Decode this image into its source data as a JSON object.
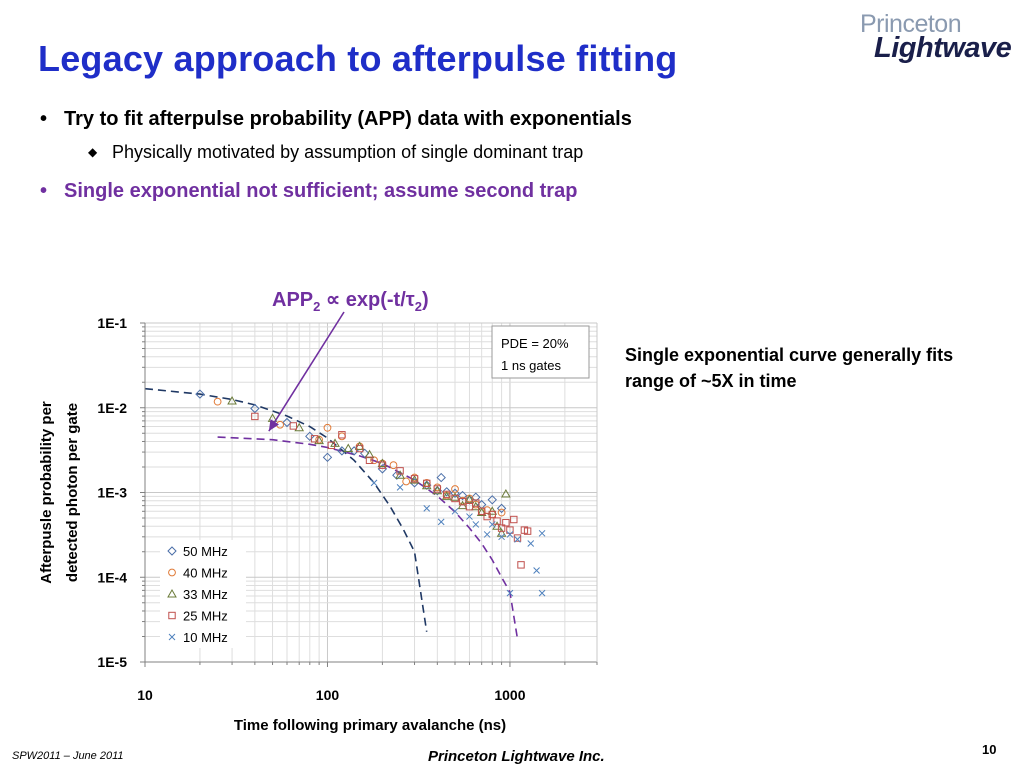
{
  "slide": {
    "title": "Legacy approach to afterpulse fitting",
    "logo_top": "Princeton",
    "logo_bottom": "Lightwave",
    "bullet1": "Try to fit afterpulse probability (APP) data with exponentials",
    "bullet1_sub": "Physically motivated by assumption of single dominant trap",
    "bullet2": "Single exponential not sufficient; assume second trap",
    "side_note": "Single exponential curve generally fits range of ~5X in time",
    "footer_left": "SPW2011 – June 2011",
    "footer_center": "Princeton Lightwave Inc.",
    "page_number": "10",
    "colors": {
      "title": "#1f2ec8",
      "purple": "#7030a0",
      "navy": "#1f3864"
    }
  },
  "chart_data": {
    "type": "scatter",
    "xlabel": "Time following  primary avalanche (ns)",
    "ylabel_line1": "Afterpusle probability per",
    "ylabel_line2": "detected photon  per gate",
    "x_scale": "log",
    "y_scale": "log",
    "xlim": [
      10,
      3000
    ],
    "ylim": [
      1e-05,
      0.1
    ],
    "x_ticks": [
      10,
      100,
      1000
    ],
    "x_tick_labels": [
      "10",
      "100",
      "1000"
    ],
    "y_ticks": [
      0.1,
      0.01,
      0.001,
      0.0001,
      1e-05
    ],
    "y_tick_labels": [
      "1E-1",
      "1E-2",
      "1E-3",
      "1E-4",
      "1E-5"
    ],
    "grid": true,
    "legend_position": "bottom-left",
    "info_box": [
      "PDE = 20%",
      "1 ns gates"
    ],
    "annotation": {
      "main": "APP",
      "sub": "2",
      "rest": "exp(-t/",
      "tau_sub": "2",
      "close": ")",
      "symbol": "∝",
      "tau": "τ",
      "target": [
        40,
        0.0053
      ]
    },
    "series": [
      {
        "name": "50 MHz",
        "marker": "diamond",
        "color": "#4a6ea8",
        "points": [
          [
            20,
            0.0145
          ],
          [
            40,
            0.0098
          ],
          [
            60,
            0.0067
          ],
          [
            80,
            0.0046
          ],
          [
            100,
            0.0026
          ],
          [
            120,
            0.0031
          ],
          [
            140,
            0.0031
          ],
          [
            160,
            0.0029
          ],
          [
            200,
            0.0019
          ],
          [
            240,
            0.0016
          ],
          [
            300,
            0.0013
          ],
          [
            350,
            0.00122
          ],
          [
            400,
            0.00105
          ],
          [
            420,
            0.0015
          ],
          [
            450,
            0.00102
          ],
          [
            500,
            0.00098
          ],
          [
            550,
            0.00092
          ],
          [
            600,
            0.00082
          ],
          [
            650,
            0.00088
          ],
          [
            700,
            0.00072
          ],
          [
            800,
            0.00082
          ],
          [
            900,
            0.00065
          ]
        ]
      },
      {
        "name": "40 MHz",
        "marker": "circle",
        "color": "#e07b39",
        "points": [
          [
            25,
            0.0118
          ],
          [
            55,
            0.0063
          ],
          [
            90,
            0.0042
          ],
          [
            100,
            0.0058
          ],
          [
            120,
            0.0046
          ],
          [
            150,
            0.0035
          ],
          [
            180,
            0.0024
          ],
          [
            200,
            0.0022
          ],
          [
            230,
            0.0021
          ],
          [
            270,
            0.00135
          ],
          [
            300,
            0.0015
          ],
          [
            350,
            0.0013
          ],
          [
            400,
            0.00115
          ],
          [
            450,
            0.00092
          ],
          [
            500,
            0.0011
          ],
          [
            550,
            0.0008
          ],
          [
            600,
            0.00085
          ],
          [
            650,
            0.00072
          ],
          [
            700,
            0.0006
          ],
          [
            750,
            0.00062
          ],
          [
            800,
            0.00055
          ],
          [
            900,
            0.00058
          ]
        ]
      },
      {
        "name": "33 MHz",
        "marker": "triangle",
        "color": "#6b7b3a",
        "points": [
          [
            30,
            0.012
          ],
          [
            50,
            0.0075
          ],
          [
            70,
            0.0058
          ],
          [
            90,
            0.0041
          ],
          [
            110,
            0.0038
          ],
          [
            130,
            0.0033
          ],
          [
            150,
            0.0035
          ],
          [
            170,
            0.0028
          ],
          [
            200,
            0.0022
          ],
          [
            250,
            0.0016
          ],
          [
            300,
            0.0014
          ],
          [
            350,
            0.0012
          ],
          [
            400,
            0.00105
          ],
          [
            450,
            0.0009
          ],
          [
            500,
            0.00088
          ],
          [
            550,
            0.0007
          ],
          [
            600,
            0.00082
          ],
          [
            650,
            0.00068
          ],
          [
            700,
            0.00058
          ],
          [
            800,
            0.0006
          ],
          [
            850,
            0.0004
          ],
          [
            900,
            0.00033
          ],
          [
            950,
            0.00096
          ]
        ]
      },
      {
        "name": "25 MHz",
        "marker": "square",
        "color": "#c0504d",
        "points": [
          [
            40,
            0.0079
          ],
          [
            65,
            0.0061
          ],
          [
            85,
            0.0043
          ],
          [
            105,
            0.0036
          ],
          [
            120,
            0.0048
          ],
          [
            150,
            0.0033
          ],
          [
            170,
            0.0024
          ],
          [
            200,
            0.0021
          ],
          [
            250,
            0.0018
          ],
          [
            300,
            0.00145
          ],
          [
            350,
            0.00128
          ],
          [
            400,
            0.0011
          ],
          [
            450,
            0.00095
          ],
          [
            500,
            0.00085
          ],
          [
            550,
            0.00078
          ],
          [
            600,
            0.00068
          ],
          [
            650,
            0.00075
          ],
          [
            700,
            0.0006
          ],
          [
            750,
            0.00052
          ],
          [
            800,
            0.00055
          ],
          [
            850,
            0.00046
          ],
          [
            900,
            0.00038
          ],
          [
            950,
            0.00044
          ],
          [
            1000,
            0.00036
          ],
          [
            1050,
            0.00048
          ],
          [
            1100,
            0.00029
          ],
          [
            1150,
            0.00014
          ],
          [
            1200,
            0.00036
          ],
          [
            1250,
            0.00035
          ]
        ]
      },
      {
        "name": "10 MHz",
        "marker": "x",
        "color": "#4f81bd",
        "points": [
          [
            180,
            0.0013
          ],
          [
            250,
            0.00115
          ],
          [
            350,
            0.00065
          ],
          [
            420,
            0.00045
          ],
          [
            500,
            0.0006
          ],
          [
            600,
            0.00052
          ],
          [
            650,
            0.00042
          ],
          [
            750,
            0.00032
          ],
          [
            800,
            0.00042
          ],
          [
            900,
            0.0003
          ],
          [
            1000,
            0.00032
          ],
          [
            1100,
            0.00028
          ],
          [
            1300,
            0.00025
          ],
          [
            1400,
            0.00012
          ],
          [
            1500,
            0.00033
          ],
          [
            1000,
            6.5e-05
          ],
          [
            1500,
            6.5e-05
          ]
        ]
      }
    ],
    "fit_curves": [
      {
        "name": "",
        "color": "#1f3864",
        "x": [
          10,
          20,
          30,
          40,
          60,
          80,
          100,
          140,
          180,
          220,
          260,
          300,
          350
        ],
        "y": [
          0.0168,
          0.0145,
          0.0125,
          0.0108,
          0.008,
          0.006,
          0.0044,
          0.0024,
          0.0013,
          0.00069,
          0.00037,
          0.0002,
          2.27e-05
        ]
      },
      {
        "name": "",
        "color": "#7030a0",
        "x": [
          25,
          50,
          80,
          100,
          150,
          200,
          300,
          400,
          500,
          600,
          700,
          800,
          900,
          1000,
          1100
        ],
        "y": [
          0.0045,
          0.0042,
          0.0037,
          0.0034,
          0.0027,
          0.0022,
          0.0014,
          0.00091,
          0.00059,
          0.00038,
          0.00025,
          0.00016,
          0.0001,
          6.7e-05,
          1.87e-05
        ]
      }
    ]
  }
}
